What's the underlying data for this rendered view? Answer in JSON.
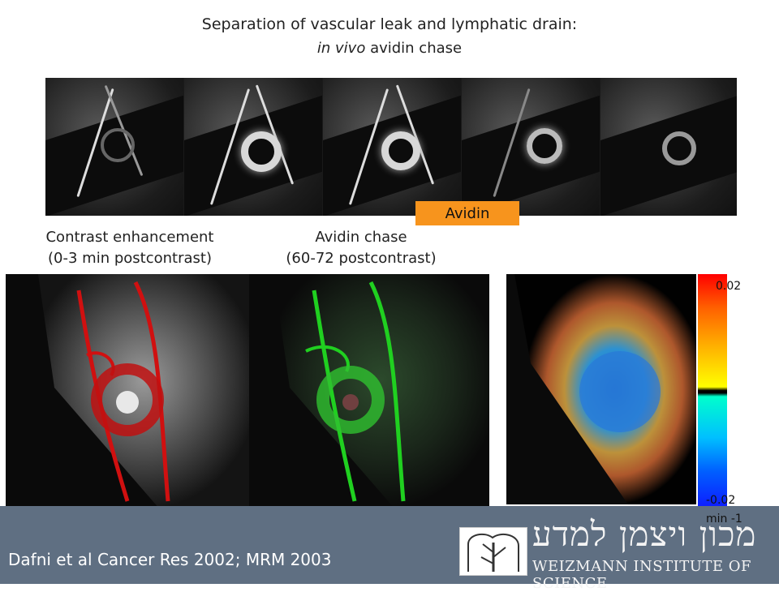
{
  "title": {
    "line1": "Separation of vascular leak and lymphatic drain:",
    "line2_italic": "in vivo",
    "line2_rest": " avidin chase"
  },
  "strip": {
    "badge": "Avidin",
    "frame_count": 5
  },
  "labels": {
    "contrast_title": "Contrast enhancement",
    "contrast_sub": "(0-3 min postcontrast)",
    "avidin_title": "Avidin chase",
    "avidin_sub": "(60-72 postcontrast)"
  },
  "colorbar": {
    "max": "0.02",
    "min": "-0.02",
    "unit": "min -1"
  },
  "colors": {
    "bar": "#5f6f82",
    "badge": "#f7941d",
    "contrast_overlay": "#d01010",
    "avidin_overlay": "#20d020"
  },
  "footer": {
    "citation": "Dafni et al Cancer Res 2002;  MRM 2003",
    "hebrew": "מכון ויצמן למדע",
    "institute": "WEIZMANN INSTITUTE OF SCIENCE"
  }
}
